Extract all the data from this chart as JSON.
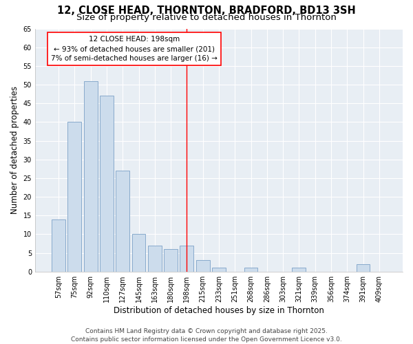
{
  "title": "12, CLOSE HEAD, THORNTON, BRADFORD, BD13 3SH",
  "subtitle": "Size of property relative to detached houses in Thornton",
  "xlabel": "Distribution of detached houses by size in Thornton",
  "ylabel": "Number of detached properties",
  "categories": [
    "57sqm",
    "75sqm",
    "92sqm",
    "110sqm",
    "127sqm",
    "145sqm",
    "163sqm",
    "180sqm",
    "198sqm",
    "215sqm",
    "233sqm",
    "251sqm",
    "268sqm",
    "286sqm",
    "303sqm",
    "321sqm",
    "339sqm",
    "356sqm",
    "374sqm",
    "391sqm",
    "409sqm"
  ],
  "values": [
    14,
    40,
    51,
    47,
    27,
    10,
    7,
    6,
    7,
    3,
    1,
    0,
    1,
    0,
    0,
    1,
    0,
    0,
    0,
    2,
    0
  ],
  "bar_color": "#ccdcec",
  "bar_edge_color": "#88aacc",
  "marker_line_index": 8,
  "marker_label": "12 CLOSE HEAD: 198sqm",
  "annotation_line1": "← 93% of detached houses are smaller (201)",
  "annotation_line2": "7% of semi-detached houses are larger (16) →",
  "ylim": [
    0,
    65
  ],
  "yticks": [
    0,
    5,
    10,
    15,
    20,
    25,
    30,
    35,
    40,
    45,
    50,
    55,
    60,
    65
  ],
  "bg_color": "#ffffff",
  "plot_bg_color": "#e8eef4",
  "grid_color": "#ffffff",
  "footer_line1": "Contains HM Land Registry data © Crown copyright and database right 2025.",
  "footer_line2": "Contains public sector information licensed under the Open Government Licence v3.0.",
  "title_fontsize": 10.5,
  "subtitle_fontsize": 9.5,
  "axis_label_fontsize": 8.5,
  "tick_fontsize": 7,
  "annotation_fontsize": 7.5,
  "footer_fontsize": 6.5
}
